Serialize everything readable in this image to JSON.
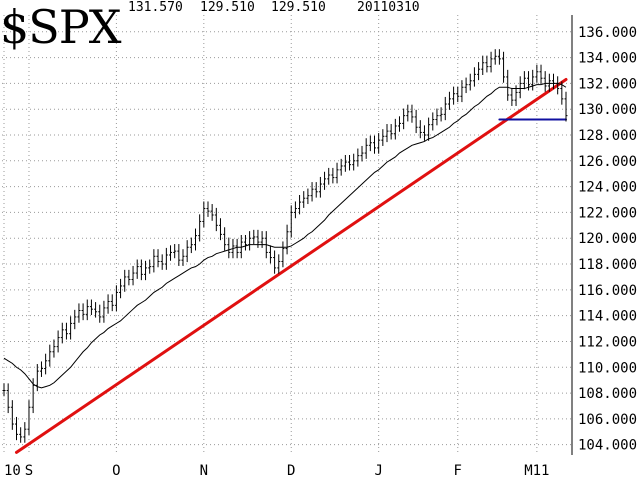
{
  "header": {
    "symbol": "$SPX",
    "quote_a": "131.570",
    "quote_b": "129.510",
    "quote_c": "129.510",
    "date": "20110310"
  },
  "colors": {
    "price": "#000000",
    "moving_average": "#000000",
    "trendline": "#e01010",
    "support": "#1010a0",
    "grid": "#9a9a9a"
  },
  "chart_data": {
    "type": "line",
    "title": "$SPX",
    "grid": true,
    "ylim": [
      103.2,
      137.3
    ],
    "y_ticks": [
      "104.000",
      "106.000",
      "108.000",
      "110.000",
      "112.000",
      "114.000",
      "116.000",
      "118.000",
      "120.000",
      "122.000",
      "124.000",
      "126.000",
      "128.000",
      "130.000",
      "132.000",
      "134.000",
      "136.000"
    ],
    "x_ticks": [
      {
        "label": "10",
        "index": 0
      },
      {
        "label": "S",
        "index": 6
      },
      {
        "label": "O",
        "index": 27
      },
      {
        "label": "N",
        "index": 48
      },
      {
        "label": "D",
        "index": 69
      },
      {
        "label": "J",
        "index": 90
      },
      {
        "label": "F",
        "index": 109
      },
      {
        "label": "M11",
        "index": 128
      }
    ],
    "n_points": 136,
    "series": [
      {
        "kind": "price-bars",
        "values": [
          108.2,
          106.9,
          105.6,
          104.8,
          104.6,
          105.2,
          106.9,
          108.6,
          109.7,
          109.9,
          110.5,
          111.2,
          111.6,
          112.3,
          112.9,
          112.6,
          113.4,
          113.9,
          114.4,
          114.1,
          114.7,
          114.5,
          114.3,
          113.9,
          114.6,
          115.1,
          114.8,
          115.8,
          116.3,
          117.0,
          116.8,
          117.3,
          117.8,
          117.2,
          117.7,
          117.8,
          118.6,
          118.2,
          118.0,
          118.7,
          118.9,
          119.0,
          118.3,
          118.6,
          119.3,
          119.5,
          120.2,
          121.3,
          122.3,
          122.1,
          121.8,
          121.0,
          120.3,
          119.5,
          118.9,
          119.4,
          118.9,
          119.7,
          119.5,
          120.0,
          120.1,
          119.7,
          120.0,
          118.9,
          118.5,
          117.7,
          118.2,
          119.2,
          120.5,
          122.0,
          122.3,
          122.8,
          123.1,
          123.3,
          123.8,
          123.6,
          124.2,
          124.6,
          124.9,
          124.7,
          125.3,
          125.6,
          125.9,
          125.7,
          126.0,
          126.4,
          126.6,
          127.2,
          127.4,
          127.0,
          127.6,
          127.9,
          128.3,
          128.1,
          128.7,
          128.9,
          129.5,
          129.8,
          129.4,
          128.6,
          128.2,
          128.0,
          128.8,
          129.2,
          129.5,
          129.6,
          130.4,
          130.8,
          131.2,
          131.0,
          131.7,
          131.9,
          132.2,
          132.7,
          133.1,
          133.6,
          133.3,
          133.9,
          134.1,
          133.9,
          132.5,
          131.1,
          130.7,
          131.3,
          132.0,
          132.4,
          131.9,
          132.5,
          132.9,
          132.4,
          131.8,
          132.2,
          132.0,
          131.6,
          130.8,
          129.5
        ]
      },
      {
        "kind": "moving-average",
        "values": [
          110.7,
          110.5,
          110.3,
          110.0,
          109.8,
          109.5,
          109.1,
          108.7,
          108.5,
          108.4,
          108.5,
          108.6,
          108.8,
          109.1,
          109.4,
          109.7,
          110.0,
          110.4,
          110.8,
          111.2,
          111.5,
          111.9,
          112.2,
          112.5,
          112.7,
          113.0,
          113.2,
          113.4,
          113.6,
          113.9,
          114.2,
          114.5,
          114.8,
          115.0,
          115.2,
          115.5,
          115.8,
          116.0,
          116.2,
          116.5,
          116.7,
          116.9,
          117.1,
          117.3,
          117.5,
          117.7,
          117.8,
          118.0,
          118.3,
          118.5,
          118.6,
          118.8,
          118.9,
          119.0,
          119.1,
          119.2,
          119.3,
          119.3,
          119.4,
          119.5,
          119.5,
          119.5,
          119.5,
          119.5,
          119.4,
          119.3,
          119.3,
          119.3,
          119.3,
          119.4,
          119.6,
          119.8,
          120.0,
          120.3,
          120.5,
          120.8,
          121.1,
          121.4,
          121.8,
          122.1,
          122.4,
          122.7,
          123.0,
          123.3,
          123.6,
          123.9,
          124.2,
          124.5,
          124.8,
          125.1,
          125.3,
          125.6,
          125.9,
          126.1,
          126.3,
          126.6,
          126.8,
          127.0,
          127.2,
          127.3,
          127.4,
          127.5,
          127.7,
          127.8,
          128.0,
          128.2,
          128.4,
          128.6,
          128.9,
          129.1,
          129.4,
          129.6,
          129.9,
          130.2,
          130.4,
          130.7,
          131.0,
          131.2,
          131.5,
          131.7,
          131.7,
          131.7,
          131.6,
          131.6,
          131.6,
          131.6,
          131.7,
          131.8,
          131.9,
          131.9,
          132.0,
          132.0,
          132.0,
          132.0,
          131.9,
          131.7
        ]
      }
    ],
    "annotations": [
      {
        "kind": "trendline",
        "from": {
          "index": 3,
          "value": 103.4
        },
        "to": {
          "index": 135,
          "value": 132.3
        }
      },
      {
        "kind": "support",
        "from": {
          "index": 119,
          "value": 129.2
        },
        "to": {
          "index": 135,
          "value": 129.2
        }
      }
    ]
  }
}
